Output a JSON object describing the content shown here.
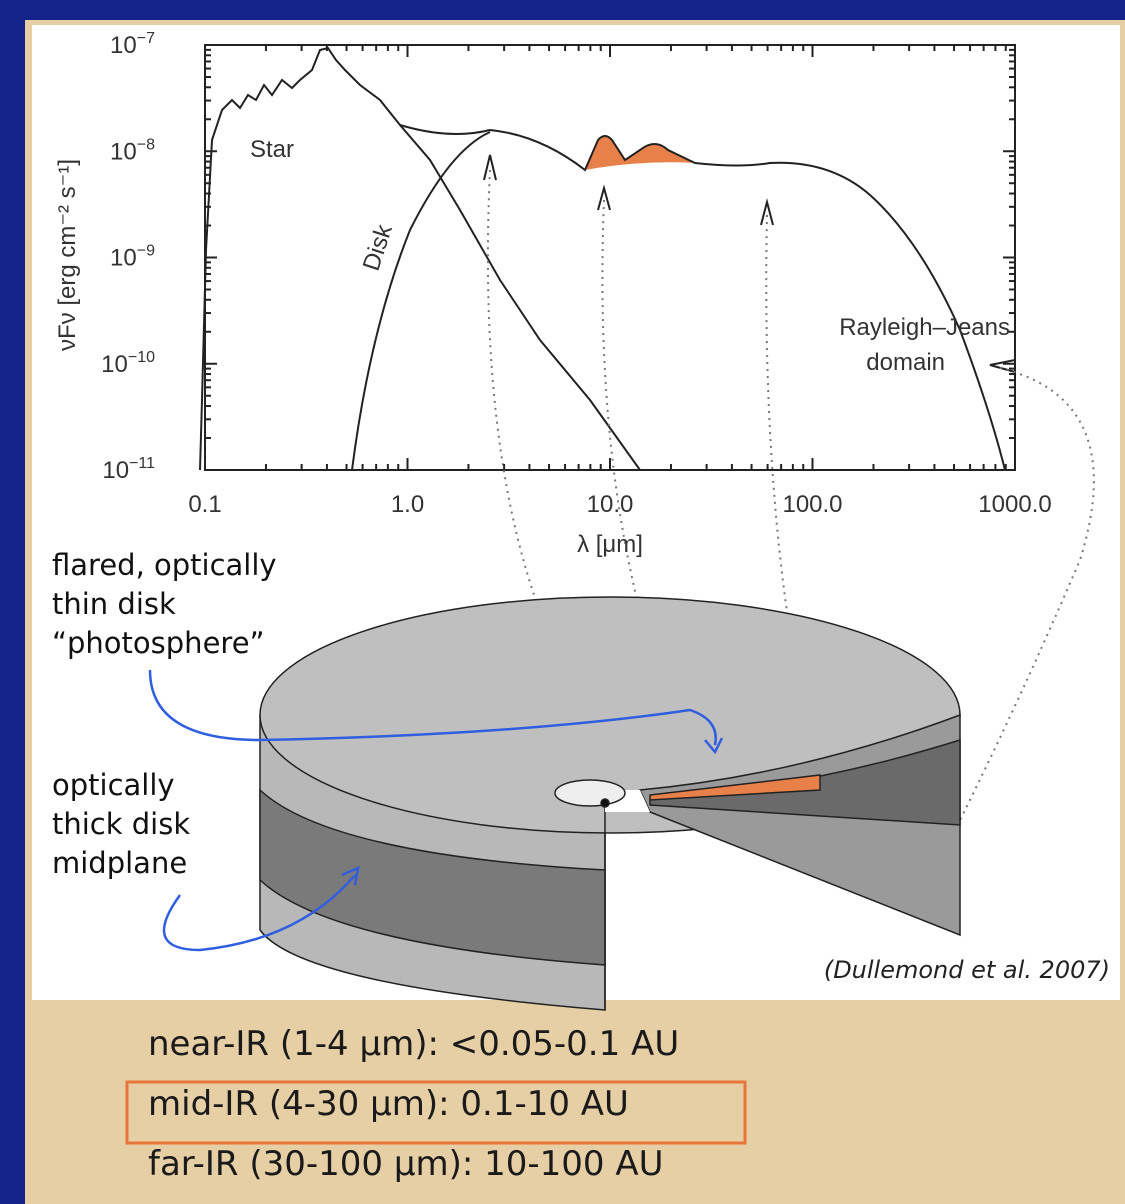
{
  "figure": {
    "y_axis_label": "νFν [erg cm⁻² s⁻¹]",
    "x_axis_label": "λ [μm]",
    "y_tick_labels": [
      {
        "base": "10",
        "exp": "−7"
      },
      {
        "base": "10",
        "exp": "−8"
      },
      {
        "base": "10",
        "exp": "−9"
      },
      {
        "base": "10",
        "exp": "−10"
      },
      {
        "base": "10",
        "exp": "−11"
      }
    ],
    "x_tick_labels": [
      "0.1",
      "1.0",
      "10.0",
      "100.0",
      "1000.0"
    ],
    "annotations": {
      "star": "Star",
      "disk": "Disk",
      "rj_line1": "Rayleigh–Jeans",
      "rj_line2": "domain"
    },
    "photosphere_label": [
      "flared, optically",
      "thin disk",
      "“photosphere”"
    ],
    "midplane_label": [
      "optically",
      "thick disk",
      "midplane"
    ],
    "credit": "(Dullemond et al. 2007)"
  },
  "regions": [
    "near-IR (1-4 µm): <0.05-0.1 AU",
    "mid-IR (4-30 µm): 0.1-10 AU",
    "far-IR (30-100 µm): 10-100 AU"
  ]
}
